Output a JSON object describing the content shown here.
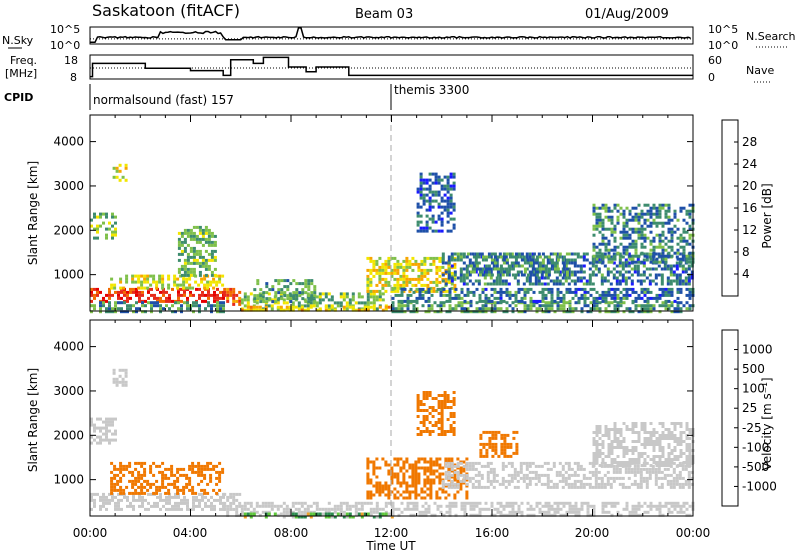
{
  "header": {
    "station": "Saskatoon (fitACF)",
    "beam": "Beam 03",
    "date": "01/Aug/2009"
  },
  "strips": {
    "nsky_label": "N.Sky",
    "nsky_ticks": [
      "10^5",
      "10^0"
    ],
    "nsearch_label": "N.Search",
    "nsearch_ticks": [
      "10^5",
      "10^0"
    ],
    "freq_label": "Freq.",
    "freq_unit": "[MHz]",
    "freq_ticks": [
      "18",
      "8"
    ],
    "nave_label": "Nave",
    "nave_ticks": [
      "60",
      "0"
    ],
    "cpid_label": "CPID",
    "cpid_segments": [
      {
        "name": "normalsound (fast) 157",
        "start_hour": 0,
        "end_hour": 12
      },
      {
        "name": "themis 3300",
        "start_hour": 12,
        "end_hour": 24
      }
    ]
  },
  "axes": {
    "ylabel": "Slant Range [km]",
    "xlabel": "Time UT",
    "yticks": [
      "1000",
      "2000",
      "3000",
      "4000"
    ],
    "xticks": [
      "00:00",
      "04:00",
      "08:00",
      "12:00",
      "16:00",
      "20:00",
      "00:00"
    ]
  },
  "power_scale": {
    "label": "Power [dB]",
    "ticks": [
      "4",
      "8",
      "12",
      "16",
      "20",
      "24",
      "28"
    ],
    "colors": [
      "#1a1aff",
      "#1e50a8",
      "#3d8c6e",
      "#7fc04a",
      "#f2e600",
      "#f7a600",
      "#f26a00",
      "#e62a1a",
      "#e60000"
    ]
  },
  "velocity_scale": {
    "label": "Velocity [m s⁻¹]",
    "ticks": [
      "1000",
      "500",
      "100",
      "25",
      "-25",
      "-100",
      "-500",
      "-1000"
    ],
    "colors": [
      "#1e3cd2",
      "#2d69a0",
      "#2d8c50",
      "#5fc83c",
      "#c8c8c8",
      "#c8c8c8",
      "#f0a028",
      "#f07800",
      "#e63c14",
      "#e60000"
    ]
  },
  "chart_data": [
    {
      "type": "heatmap",
      "title": "Power",
      "quantity": "Power [dB]",
      "x_unit": "hours UT",
      "y_unit": "km",
      "xlim": [
        0,
        24
      ],
      "ylim": [
        180,
        4600
      ],
      "regions": [
        {
          "x0": 0.0,
          "x1": 5.3,
          "y0": 400,
          "y1": 700,
          "value": 26
        },
        {
          "x0": 0.8,
          "x1": 5.3,
          "y0": 700,
          "y1": 1000,
          "value": 15
        },
        {
          "x0": 0.0,
          "x1": 5.3,
          "y0": 180,
          "y1": 400,
          "value": 9
        },
        {
          "x0": 5.3,
          "x1": 6.0,
          "y0": 300,
          "y1": 700,
          "value": 24
        },
        {
          "x0": 6.0,
          "x1": 11.8,
          "y0": 250,
          "y1": 600,
          "value": 12
        },
        {
          "x0": 6.0,
          "x1": 12.0,
          "y0": 180,
          "y1": 300,
          "value": 18
        },
        {
          "x0": 6.5,
          "x1": 9.0,
          "y0": 400,
          "y1": 900,
          "value": 10
        },
        {
          "x0": 11.0,
          "x1": 14.5,
          "y0": 600,
          "y1": 1400,
          "value": 16
        },
        {
          "x0": 12.0,
          "x1": 24.0,
          "y0": 180,
          "y1": 400,
          "value": 10
        },
        {
          "x0": 12.0,
          "x1": 24.0,
          "y0": 400,
          "y1": 700,
          "value": 7
        },
        {
          "x0": 14.0,
          "x1": 24.0,
          "y0": 800,
          "y1": 1500,
          "value": 7
        },
        {
          "x0": 15.0,
          "x1": 19.0,
          "y0": 1000,
          "y1": 1500,
          "value": 9
        },
        {
          "x0": 20.0,
          "x1": 24.0,
          "y0": 1300,
          "y1": 2600,
          "value": 8
        },
        {
          "x0": 0.0,
          "x1": 1.0,
          "y0": 1800,
          "y1": 2400,
          "value": 12
        },
        {
          "x0": 0.9,
          "x1": 1.4,
          "y0": 3100,
          "y1": 3500,
          "value": 16
        },
        {
          "x0": 13.0,
          "x1": 14.5,
          "y0": 2000,
          "y1": 3300,
          "value": 6
        },
        {
          "x0": 3.5,
          "x1": 5.0,
          "y0": 1000,
          "y1": 2100,
          "value": 11
        }
      ]
    },
    {
      "type": "heatmap",
      "title": "Velocity",
      "quantity": "Velocity [m s-1]",
      "x_unit": "hours UT",
      "y_unit": "km",
      "xlim": [
        0,
        24
      ],
      "ylim": [
        180,
        4600
      ],
      "regions": [
        {
          "x0": 0.0,
          "x1": 5.3,
          "y0": 300,
          "y1": 700,
          "value": 0
        },
        {
          "x0": 0.8,
          "x1": 5.3,
          "y0": 700,
          "y1": 1400,
          "value": -300
        },
        {
          "x0": 5.3,
          "x1": 6.0,
          "y0": 200,
          "y1": 700,
          "value": 0
        },
        {
          "x0": 6.0,
          "x1": 12.0,
          "y0": 180,
          "y1": 500,
          "value": 0
        },
        {
          "x0": 6.0,
          "x1": 12.0,
          "y0": 180,
          "y1": 260,
          "value": 60
        },
        {
          "x0": 11.0,
          "x1": 15.0,
          "y0": 600,
          "y1": 1500,
          "value": -300
        },
        {
          "x0": 12.0,
          "x1": 24.0,
          "y0": 180,
          "y1": 500,
          "value": 0
        },
        {
          "x0": 14.0,
          "x1": 24.0,
          "y0": 800,
          "y1": 1400,
          "value": 0
        },
        {
          "x0": 20.0,
          "x1": 24.0,
          "y0": 1300,
          "y1": 2300,
          "value": 0
        },
        {
          "x0": 0.0,
          "x1": 1.0,
          "y0": 1800,
          "y1": 2400,
          "value": 0
        },
        {
          "x0": 0.9,
          "x1": 1.4,
          "y0": 3100,
          "y1": 3500,
          "value": 0
        },
        {
          "x0": 13.0,
          "x1": 14.5,
          "y0": 2000,
          "y1": 3000,
          "value": -300
        },
        {
          "x0": 15.5,
          "x1": 17.0,
          "y0": 1500,
          "y1": 2100,
          "value": -300
        }
      ]
    }
  ]
}
